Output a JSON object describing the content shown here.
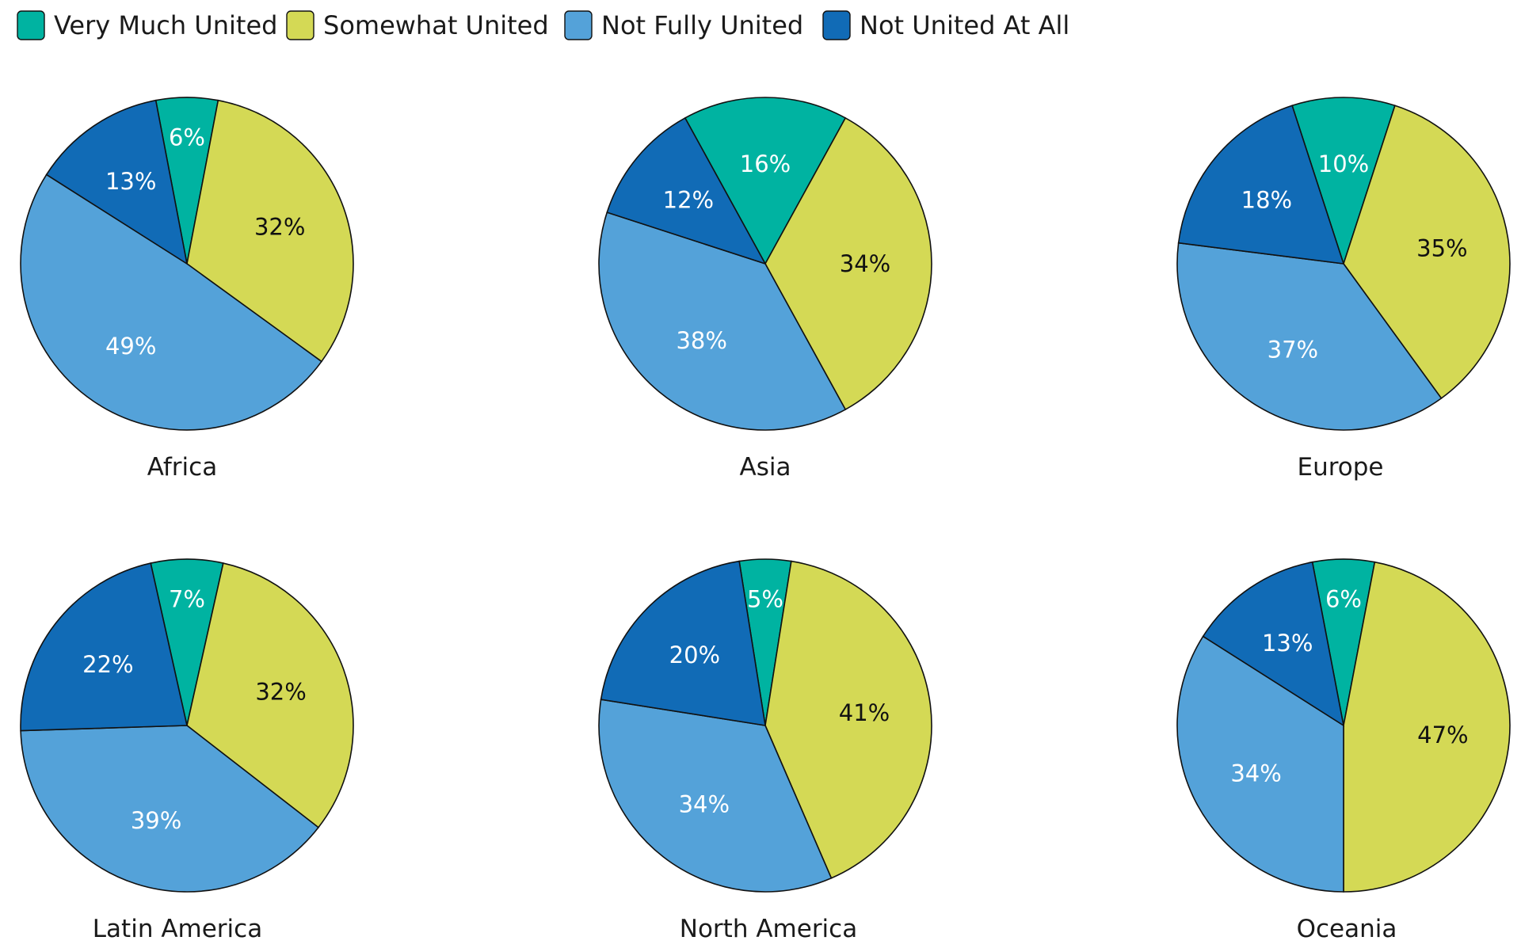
{
  "chart_data": {
    "type": "pie",
    "legend": {
      "entries": [
        {
          "key": "very",
          "label": "Very Much United",
          "color": "#00b3a1"
        },
        {
          "key": "somewhat",
          "label": "Somewhat United",
          "color": "#d4d955"
        },
        {
          "key": "notfully",
          "label": "Not Fully United",
          "color": "#54a2d9"
        },
        {
          "key": "notatall",
          "label": "Not United At All",
          "color": "#116bb6"
        }
      ],
      "position": "top-left"
    },
    "pies": [
      {
        "title": "Africa",
        "values": [
          6,
          32,
          49,
          13
        ],
        "labels": [
          "6%",
          "32%",
          "49%",
          "13%"
        ]
      },
      {
        "title": "Asia",
        "values": [
          16,
          34,
          38,
          12
        ],
        "labels": [
          "16%",
          "34%",
          "38%",
          "12%"
        ]
      },
      {
        "title": "Europe",
        "values": [
          10,
          35,
          37,
          18
        ],
        "labels": [
          "10%",
          "35%",
          "37%",
          "18%"
        ]
      },
      {
        "title": "Latin America",
        "values": [
          7,
          32,
          39,
          22
        ],
        "labels": [
          "7%",
          "32%",
          "39%",
          "22%"
        ]
      },
      {
        "title": "North America",
        "values": [
          5,
          41,
          34,
          20
        ],
        "labels": [
          "5%",
          "41%",
          "34%",
          "20%"
        ]
      },
      {
        "title": "Oceania",
        "values": [
          6,
          47,
          34,
          13
        ],
        "labels": [
          "6%",
          "47%",
          "34%",
          "13%"
        ]
      }
    ]
  }
}
